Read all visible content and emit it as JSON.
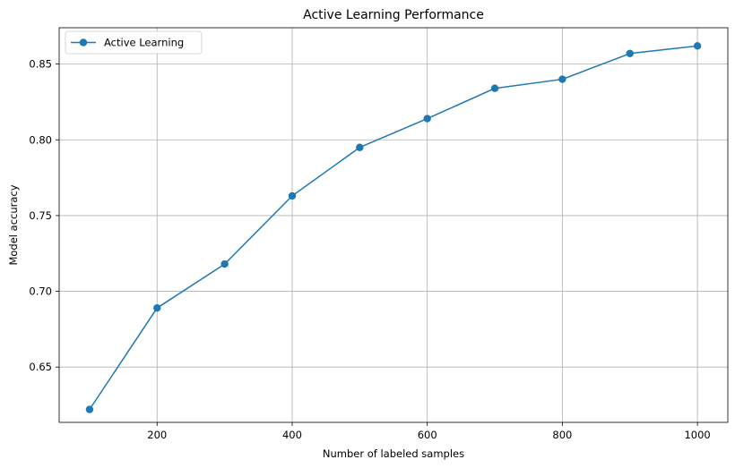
{
  "chart_data": {
    "type": "line",
    "title": "Active Learning Performance",
    "xlabel": "Number of labeled samples",
    "ylabel": "Model accuracy",
    "xlim": [
      55,
      1045
    ],
    "ylim": [
      0.6135,
      0.874
    ],
    "x_ticks": [
      200,
      400,
      600,
      800,
      1000
    ],
    "y_ticks": [
      0.65,
      0.7,
      0.75,
      0.8,
      0.85
    ],
    "x_tick_labels": [
      "200",
      "400",
      "600",
      "800",
      "1000"
    ],
    "y_tick_labels": [
      "0.65",
      "0.70",
      "0.75",
      "0.80",
      "0.85"
    ],
    "grid": true,
    "legend_position": "upper-left",
    "series": [
      {
        "name": "Active Learning",
        "color": "#1f77b4",
        "marker": "circle",
        "x": [
          100,
          200,
          300,
          400,
          500,
          600,
          700,
          800,
          900,
          1000
        ],
        "y": [
          0.622,
          0.689,
          0.718,
          0.763,
          0.795,
          0.814,
          0.834,
          0.84,
          0.857,
          0.862
        ]
      }
    ]
  }
}
